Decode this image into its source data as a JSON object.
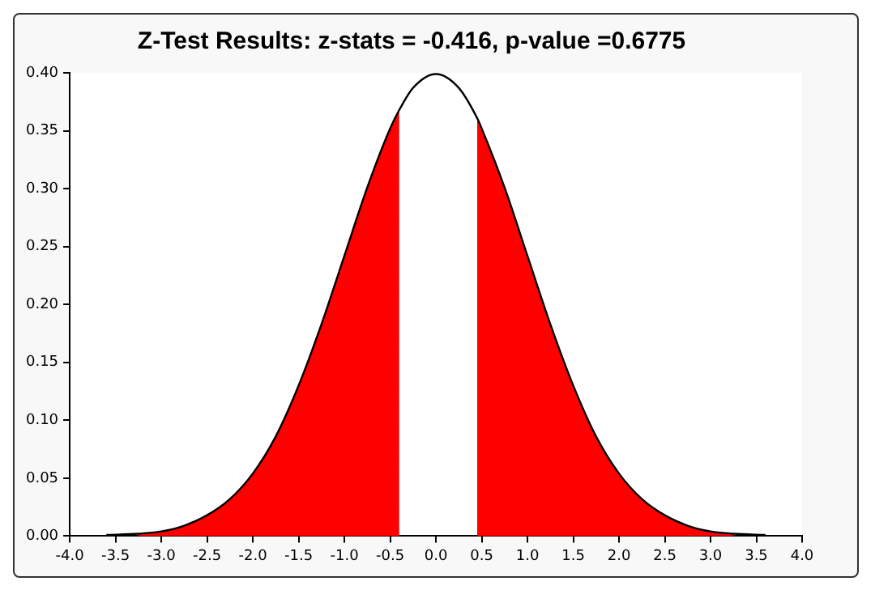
{
  "chart_data": {
    "type": "line",
    "title": "Z-Test Results: z-stats = -0.416, p-value =0.6775",
    "xlim": [
      -4,
      4
    ],
    "xticks": [
      {
        "value": -4,
        "label": "-4.0"
      },
      {
        "value": -3.5,
        "label": "-3.5"
      },
      {
        "value": -3,
        "label": "-3.0"
      },
      {
        "value": -2.5,
        "label": "-2.5"
      },
      {
        "value": -2,
        "label": "-2.0"
      },
      {
        "value": -1.5,
        "label": "-1.5"
      },
      {
        "value": -1,
        "label": "-1.0"
      },
      {
        "value": -0.5,
        "label": "-0.5"
      },
      {
        "value": 0,
        "label": "0.0"
      },
      {
        "value": 0.5,
        "label": "0.5"
      },
      {
        "value": 1,
        "label": "1.0"
      },
      {
        "value": 1.5,
        "label": "1.5"
      },
      {
        "value": 2,
        "label": "2.0"
      },
      {
        "value": 2.5,
        "label": "2.5"
      },
      {
        "value": 3,
        "label": "3.0"
      },
      {
        "value": 3.5,
        "label": "3.5"
      },
      {
        "value": 4,
        "label": "4.0"
      }
    ],
    "ylim": [
      0,
      0.4
    ],
    "yticks": [
      {
        "value": 0,
        "label": "0.00"
      },
      {
        "value": 0.05,
        "label": "0.05"
      },
      {
        "value": 0.1,
        "label": "0.10"
      },
      {
        "value": 0.15,
        "label": "0.15"
      },
      {
        "value": 0.2,
        "label": "0.20"
      },
      {
        "value": 0.25,
        "label": "0.25"
      },
      {
        "value": 0.3,
        "label": "0.30"
      },
      {
        "value": 0.35,
        "label": "0.35"
      },
      {
        "value": 0.4,
        "label": "0.40"
      }
    ],
    "grid": false,
    "legend": false,
    "marker": "none",
    "series": [
      {
        "type": "area",
        "color": "#ff0000",
        "x": [
          -3.25,
          -3,
          -2.75,
          -2.5,
          -2.25,
          -2,
          -1.75,
          -1.5,
          -1.25,
          -1,
          -0.75,
          -0.5,
          -0.4
        ],
        "values": [
          0.002,
          0.004,
          0.009,
          0.018,
          0.032,
          0.054,
          0.086,
          0.13,
          0.183,
          0.242,
          0.301,
          0.352,
          0.368
        ]
      },
      {
        "type": "area",
        "color": "#ff0000",
        "x": [
          0.45,
          0.5,
          0.75,
          1,
          1.25,
          1.5,
          1.75,
          2,
          2.25,
          2.5,
          2.75,
          3,
          3.25
        ],
        "values": [
          0.361,
          0.352,
          0.301,
          0.242,
          0.183,
          0.13,
          0.086,
          0.054,
          0.032,
          0.018,
          0.009,
          0.004,
          0.002
        ]
      },
      {
        "type": "line",
        "color": "#000000",
        "x": [
          -3.6,
          -3.25,
          -3,
          -2.75,
          -2.5,
          -2.25,
          -2,
          -1.75,
          -1.5,
          -1.25,
          -1,
          -0.75,
          -0.5,
          -0.4,
          -0.25,
          0,
          0.25,
          0.45,
          0.5,
          0.75,
          1,
          1.25,
          1.5,
          1.75,
          2,
          2.25,
          2.5,
          2.75,
          3,
          3.25,
          3.6
        ],
        "values": [
          0.001,
          0.002,
          0.004,
          0.009,
          0.018,
          0.032,
          0.054,
          0.086,
          0.13,
          0.183,
          0.242,
          0.301,
          0.352,
          0.368,
          0.387,
          0.399,
          0.387,
          0.361,
          0.352,
          0.301,
          0.242,
          0.183,
          0.13,
          0.086,
          0.054,
          0.032,
          0.018,
          0.009,
          0.004,
          0.002,
          0.001
        ]
      }
    ]
  }
}
